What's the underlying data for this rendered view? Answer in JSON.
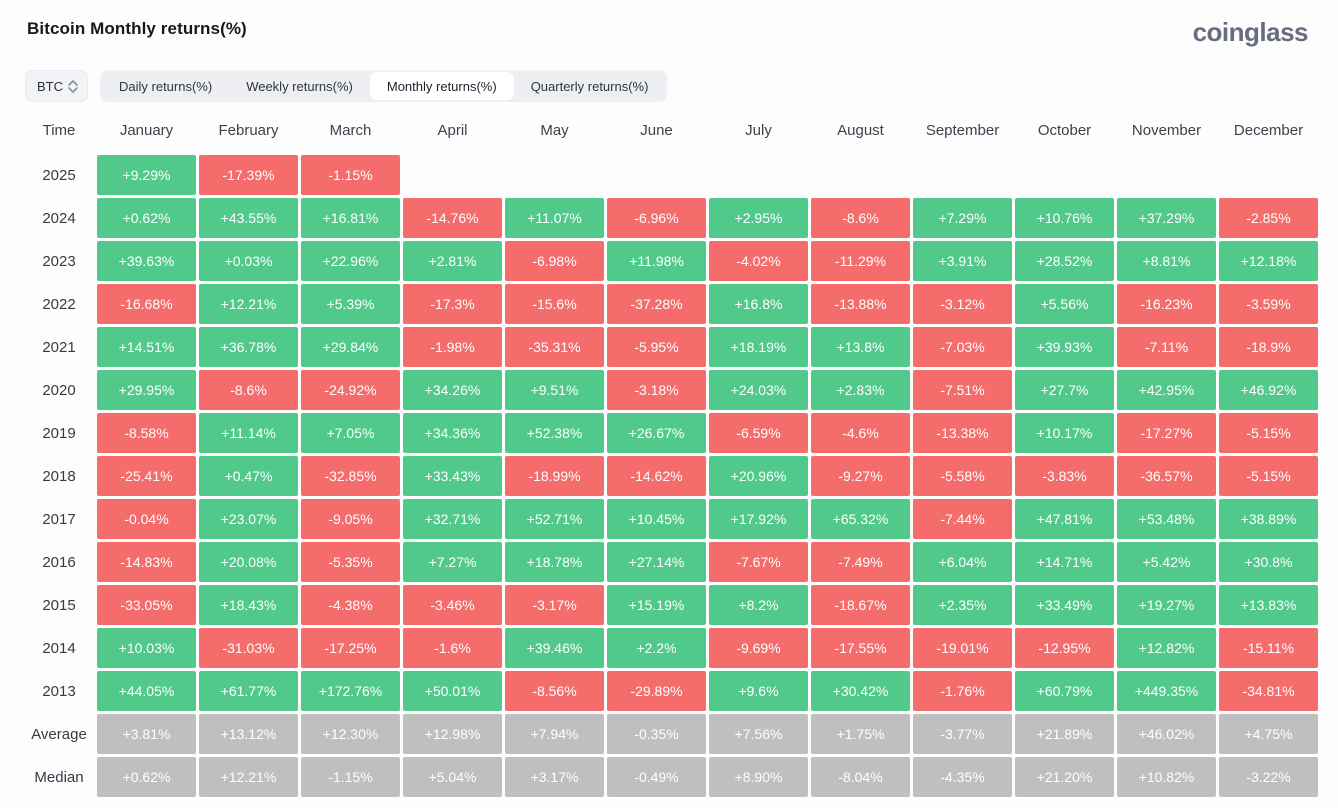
{
  "page": {
    "title": "Bitcoin Monthly returns(%)",
    "logo": "coinglass"
  },
  "controls": {
    "coin_select": {
      "value": "BTC",
      "icon": "unfold-chevrons-icon"
    },
    "tabs": [
      {
        "label": "Daily returns(%)",
        "active": false
      },
      {
        "label": "Weekly returns(%)",
        "active": false
      },
      {
        "label": "Monthly returns(%)",
        "active": true
      },
      {
        "label": "Quarterly returns(%)",
        "active": false
      }
    ]
  },
  "colors": {
    "positive": "#51c98b",
    "negative": "#f56c6d",
    "neutral": "#bfbfbf",
    "tab_bar": "#edeff3",
    "active_tab": "#ffffff"
  },
  "table": {
    "columns": [
      "Time",
      "January",
      "February",
      "March",
      "April",
      "May",
      "June",
      "July",
      "August",
      "September",
      "October",
      "November",
      "December"
    ],
    "rows": [
      {
        "label": "2025",
        "type": "year",
        "values": [
          "+9.29%",
          "-17.39%",
          "-1.15%",
          "",
          "",
          "",
          "",
          "",
          "",
          "",
          "",
          ""
        ]
      },
      {
        "label": "2024",
        "type": "year",
        "values": [
          "+0.62%",
          "+43.55%",
          "+16.81%",
          "-14.76%",
          "+11.07%",
          "-6.96%",
          "+2.95%",
          "-8.6%",
          "+7.29%",
          "+10.76%",
          "+37.29%",
          "-2.85%"
        ]
      },
      {
        "label": "2023",
        "type": "year",
        "values": [
          "+39.63%",
          "+0.03%",
          "+22.96%",
          "+2.81%",
          "-6.98%",
          "+11.98%",
          "-4.02%",
          "-11.29%",
          "+3.91%",
          "+28.52%",
          "+8.81%",
          "+12.18%"
        ]
      },
      {
        "label": "2022",
        "type": "year",
        "values": [
          "-16.68%",
          "+12.21%",
          "+5.39%",
          "-17.3%",
          "-15.6%",
          "-37.28%",
          "+16.8%",
          "-13.88%",
          "-3.12%",
          "+5.56%",
          "-16.23%",
          "-3.59%"
        ]
      },
      {
        "label": "2021",
        "type": "year",
        "values": [
          "+14.51%",
          "+36.78%",
          "+29.84%",
          "-1.98%",
          "-35.31%",
          "-5.95%",
          "+18.19%",
          "+13.8%",
          "-7.03%",
          "+39.93%",
          "-7.11%",
          "-18.9%"
        ]
      },
      {
        "label": "2020",
        "type": "year",
        "values": [
          "+29.95%",
          "-8.6%",
          "-24.92%",
          "+34.26%",
          "+9.51%",
          "-3.18%",
          "+24.03%",
          "+2.83%",
          "-7.51%",
          "+27.7%",
          "+42.95%",
          "+46.92%"
        ]
      },
      {
        "label": "2019",
        "type": "year",
        "values": [
          "-8.58%",
          "+11.14%",
          "+7.05%",
          "+34.36%",
          "+52.38%",
          "+26.67%",
          "-6.59%",
          "-4.6%",
          "-13.38%",
          "+10.17%",
          "-17.27%",
          "-5.15%"
        ]
      },
      {
        "label": "2018",
        "type": "year",
        "values": [
          "-25.41%",
          "+0.47%",
          "-32.85%",
          "+33.43%",
          "-18.99%",
          "-14.62%",
          "+20.96%",
          "-9.27%",
          "-5.58%",
          "-3.83%",
          "-36.57%",
          "-5.15%"
        ]
      },
      {
        "label": "2017",
        "type": "year",
        "values": [
          "-0.04%",
          "+23.07%",
          "-9.05%",
          "+32.71%",
          "+52.71%",
          "+10.45%",
          "+17.92%",
          "+65.32%",
          "-7.44%",
          "+47.81%",
          "+53.48%",
          "+38.89%"
        ]
      },
      {
        "label": "2016",
        "type": "year",
        "values": [
          "-14.83%",
          "+20.08%",
          "-5.35%",
          "+7.27%",
          "+18.78%",
          "+27.14%",
          "-7.67%",
          "-7.49%",
          "+6.04%",
          "+14.71%",
          "+5.42%",
          "+30.8%"
        ]
      },
      {
        "label": "2015",
        "type": "year",
        "values": [
          "-33.05%",
          "+18.43%",
          "-4.38%",
          "-3.46%",
          "-3.17%",
          "+15.19%",
          "+8.2%",
          "-18.67%",
          "+2.35%",
          "+33.49%",
          "+19.27%",
          "+13.83%"
        ]
      },
      {
        "label": "2014",
        "type": "year",
        "values": [
          "+10.03%",
          "-31.03%",
          "-17.25%",
          "-1.6%",
          "+39.46%",
          "+2.2%",
          "-9.69%",
          "-17.55%",
          "-19.01%",
          "-12.95%",
          "+12.82%",
          "-15.11%"
        ]
      },
      {
        "label": "2013",
        "type": "year",
        "values": [
          "+44.05%",
          "+61.77%",
          "+172.76%",
          "+50.01%",
          "-8.56%",
          "-29.89%",
          "+9.6%",
          "+30.42%",
          "-1.76%",
          "+60.79%",
          "+449.35%",
          "-34.81%"
        ]
      },
      {
        "label": "Average",
        "type": "summary",
        "values": [
          "+3.81%",
          "+13.12%",
          "+12.30%",
          "+12.98%",
          "+7.94%",
          "-0.35%",
          "+7.56%",
          "+1.75%",
          "-3.77%",
          "+21.89%",
          "+46.02%",
          "+4.75%"
        ]
      },
      {
        "label": "Median",
        "type": "summary",
        "values": [
          "+0.62%",
          "+12.21%",
          "-1.15%",
          "+5.04%",
          "+3.17%",
          "-0.49%",
          "+8.90%",
          "-8.04%",
          "-4.35%",
          "+21.20%",
          "+10.82%",
          "-3.22%"
        ]
      }
    ]
  }
}
